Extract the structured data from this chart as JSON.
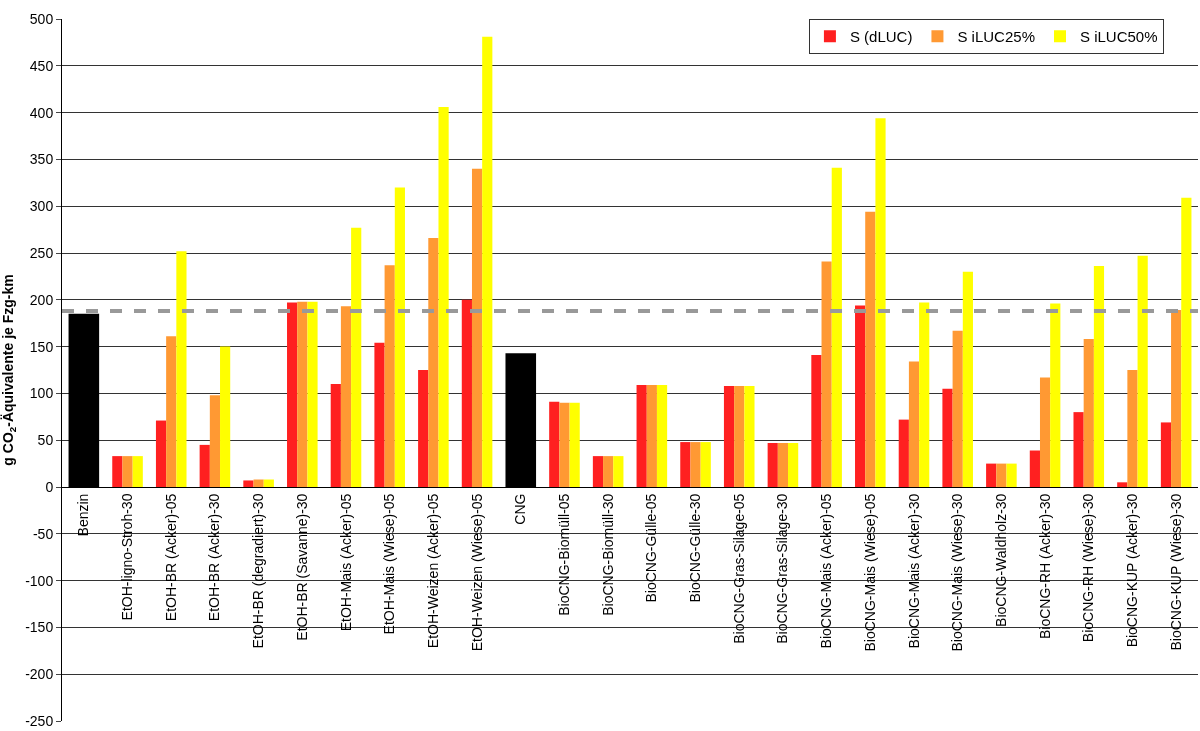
{
  "chart_data": {
    "type": "bar",
    "ylabel": "g CO$_{2}$-Äquivalente je Fzg-km",
    "categories": [
      "Benzin",
      "EtOH-ligno-Stroh-30",
      "EtOH-BR (Acker)-05",
      "EtOH-BR (Acker)-30",
      "EtOH-BR (degradiert)-30",
      "EtOH-BR (Savanne)-30",
      "EtOH-Mais (Acker)-05",
      "EtOH-Mais (Wiese)-05",
      "EtOH-Weizen (Acker)-05",
      "EtOH-Weizen (Wiese)-05",
      "CNG",
      "BioCNG-Biomüll-05",
      "BioCNG-Biomüll-30",
      "BioCNG-Gülle-05",
      "BioCNG-Gülle-30",
      "BioCNG-Gras-Silage-05",
      "BioCNG-Gras-Silage-30",
      "BioCNG-Mais (Acker)-05",
      "BioCNG-Mais (Wiese)-05",
      "BioCNG-Mais (Acker)-30",
      "BioCNG-Mais (Wiese)-30",
      "BioCNG-Waldholz-30",
      "BioCNG-RH (Acker)-30",
      "BioCNG-RH (Wiese)-30",
      "BioCNG-KUP (Acker)-30",
      "BioCNG-KUP (Wiese)-30"
    ],
    "series": [
      {
        "color": "#000000",
        "values": [
          185,
          null,
          null,
          null,
          null,
          null,
          null,
          null,
          null,
          null,
          143,
          null,
          null,
          null,
          null,
          null,
          null,
          null,
          null,
          null,
          null,
          null,
          null,
          null,
          null,
          null
        ]
      },
      {
        "name": "S (dLUC)",
        "color": "#ff2020",
        "values": [
          null,
          33,
          71,
          45,
          7,
          197,
          110,
          154,
          125,
          200,
          null,
          91,
          33,
          109,
          48,
          108,
          47,
          141,
          194,
          72,
          105,
          25,
          39,
          80,
          5,
          69
        ]
      },
      {
        "name": "S iLUC25%",
        "color": "#ff9933",
        "values": [
          null,
          33,
          161,
          98,
          8,
          198,
          193,
          237,
          266,
          340,
          null,
          90,
          33,
          109,
          48,
          108,
          47,
          241,
          294,
          134,
          167,
          25,
          117,
          158,
          125,
          189
        ]
      },
      {
        "name": "S iLUC50%",
        "color": "#ffff00",
        "values": [
          null,
          33,
          252,
          150,
          8,
          198,
          277,
          320,
          406,
          481,
          null,
          90,
          33,
          109,
          48,
          108,
          47,
          341,
          394,
          197,
          230,
          25,
          196,
          236,
          247,
          309
        ]
      }
    ],
    "ylim": [
      -250,
      500
    ],
    "yticks": [
      -250,
      -200,
      -150,
      -100,
      -50,
      0,
      50,
      100,
      150,
      200,
      250,
      300,
      350,
      400,
      450,
      500
    ],
    "ref_lines": [
      {
        "axis": "y",
        "value": 188,
        "color": "#999999",
        "line_style": "dashed"
      }
    ],
    "grid": "y",
    "legend": "top right"
  }
}
